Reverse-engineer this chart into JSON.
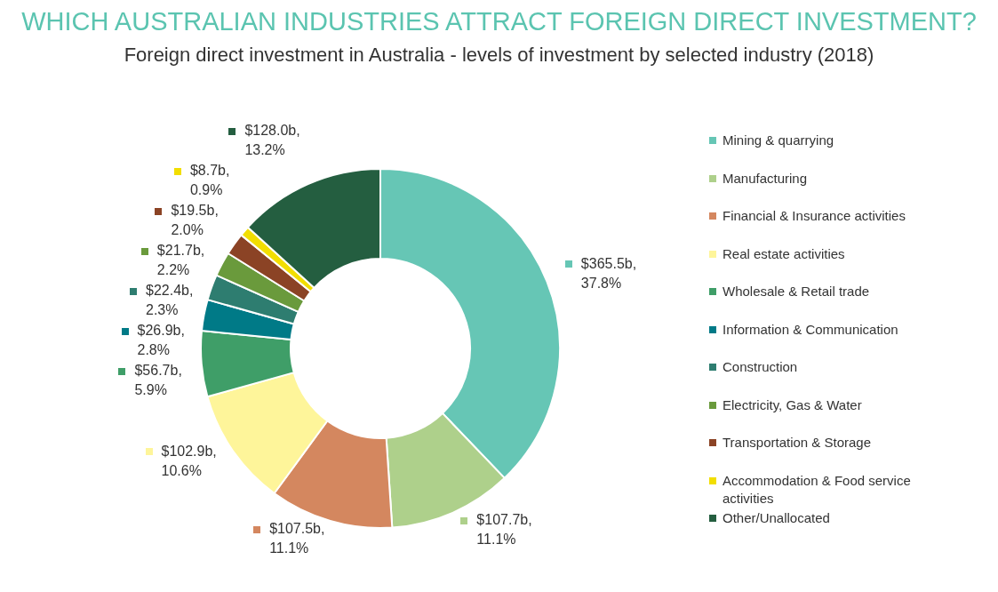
{
  "chart_data": {
    "type": "donut",
    "title": "WHICH AUSTRALIAN INDUSTRIES ATTRACT FOREIGN DIRECT INVESTMENT?",
    "subtitle": "Foreign direct investment in Australia - levels of investment by selected industry (2018)",
    "categories": [
      "Mining & quarrying",
      "Manufacturing",
      "Financial & Insurance activities",
      "Real estate activities",
      "Wholesale & Retail trade",
      "Information & Communication",
      "Construction",
      "Electricity, Gas & Water",
      "Transportation & Storage",
      "Accommodation & Food service activities",
      "Other/Unallocated"
    ],
    "values": [
      37.8,
      11.1,
      11.1,
      10.6,
      5.9,
      2.8,
      2.3,
      2.2,
      2.0,
      0.9,
      13.2
    ],
    "value_labels": [
      "$365.5b, 37.8%",
      "$107.7b, 11.1%",
      "$107.5b, 11.1%",
      "$102.9b, 10.6%",
      "$56.7b, 5.9%",
      "$26.9b, 2.8%",
      "$22.4b, 2.3%",
      "$21.7b, 2.2%",
      "$19.5b, 2.0%",
      "$8.7b, 0.9%",
      "$128.0b, 13.2%"
    ],
    "colors": [
      "#66c6b5",
      "#aed08b",
      "#d4875f",
      "#fef59a",
      "#3f9e68",
      "#007a87",
      "#2e7d70",
      "#6a9a3c",
      "#8b4325",
      "#f2de00",
      "#245e40"
    ],
    "legend": "right"
  }
}
